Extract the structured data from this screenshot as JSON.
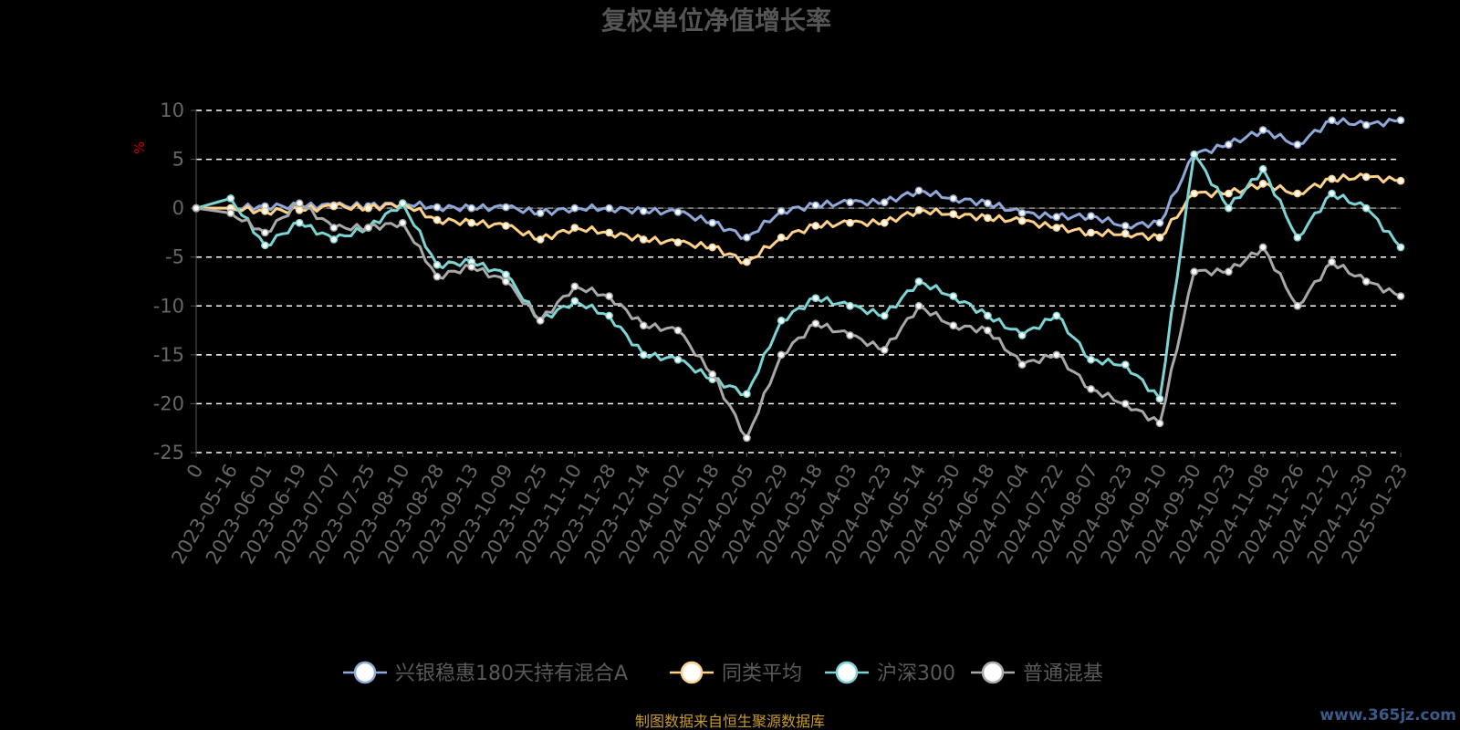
{
  "chart_data": {
    "type": "line",
    "title": "复权单位净值增长率",
    "ylabel": "%",
    "ylim": [
      -25,
      10
    ],
    "yticks": [
      10,
      5,
      0,
      -5,
      -10,
      -15,
      -20,
      -25
    ],
    "xticks": [
      "0",
      "2023-05-16",
      "2023-06-01",
      "2023-06-19",
      "2023-07-07",
      "2023-07-25",
      "2023-08-10",
      "2023-08-28",
      "2023-09-13",
      "2023-10-09",
      "2023-10-25",
      "2023-11-10",
      "2023-11-28",
      "2023-12-14",
      "2024-01-02",
      "2024-01-18",
      "2024-02-05",
      "2024-02-29",
      "2024-03-18",
      "2024-04-03",
      "2024-04-23",
      "2024-05-14",
      "2024-05-30",
      "2024-06-18",
      "2024-07-04",
      "2024-07-22",
      "2024-08-07",
      "2024-08-23",
      "2024-09-10",
      "2024-09-30",
      "2024-10-23",
      "2024-11-08",
      "2024-11-26",
      "2024-12-12",
      "2024-12-30",
      "2025-01-23"
    ],
    "grid": true,
    "legend_position": "bottom",
    "series": [
      {
        "name": "兴银稳惠180天持有混合A",
        "color": "#8fa8d8",
        "values": [
          0,
          0,
          0.2,
          0.2,
          0.3,
          0.2,
          0.5,
          0.1,
          0,
          0.1,
          -0.5,
          0,
          0,
          -0.3,
          -0.4,
          -1.5,
          -3,
          -0.3,
          0.3,
          0.6,
          0.6,
          1.8,
          1.0,
          0.5,
          -0.5,
          -0.9,
          -0.8,
          -1.8,
          -1.5,
          5.5,
          6.5,
          8.0,
          6.5,
          9.0,
          8.5,
          9.0
        ]
      },
      {
        "name": "同类平均",
        "color": "#ffd28a",
        "values": [
          0,
          0,
          -0.3,
          -0.2,
          0.2,
          0,
          0.5,
          -1.2,
          -1.5,
          -1.8,
          -3.2,
          -2.0,
          -2.5,
          -3.2,
          -3.5,
          -4.0,
          -5.5,
          -3.0,
          -1.8,
          -1.5,
          -1.5,
          -0.2,
          -0.6,
          -1.0,
          -1.3,
          -2.0,
          -2.5,
          -2.6,
          -3.0,
          1.5,
          1.5,
          2.5,
          1.5,
          3.0,
          3.2,
          2.8
        ]
      },
      {
        "name": "沪深300",
        "color": "#7dd4d4",
        "values": [
          0,
          1.0,
          -3.8,
          -1.5,
          -3.2,
          -2.0,
          0.5,
          -5.8,
          -5.5,
          -6.8,
          -11.5,
          -9.5,
          -11.0,
          -15.0,
          -15.5,
          -17.5,
          -19.0,
          -11.5,
          -9.2,
          -10.0,
          -11.0,
          -7.5,
          -9.0,
          -11.0,
          -13.0,
          -11.0,
          -15.5,
          -16.0,
          -19.5,
          5.5,
          0,
          4.0,
          -3.0,
          1.5,
          0,
          -4.0
        ]
      },
      {
        "name": "普通混基",
        "color": "#a8a8a8",
        "values": [
          0,
          -0.5,
          -2.5,
          0.5,
          -2.0,
          -2.0,
          -1.5,
          -7.0,
          -6.0,
          -7.5,
          -11.5,
          -8.0,
          -9.0,
          -12.0,
          -12.5,
          -17.0,
          -23.5,
          -15.0,
          -11.8,
          -13.0,
          -14.5,
          -10.0,
          -12.0,
          -12.5,
          -16.0,
          -15.0,
          -18.5,
          -20.0,
          -22.0,
          -6.5,
          -6.5,
          -4.0,
          -10.0,
          -5.5,
          -7.5,
          -9.0
        ]
      }
    ]
  },
  "source_text": "制图数据来自恒生聚源数据库",
  "watermark": "www.365jz.com"
}
